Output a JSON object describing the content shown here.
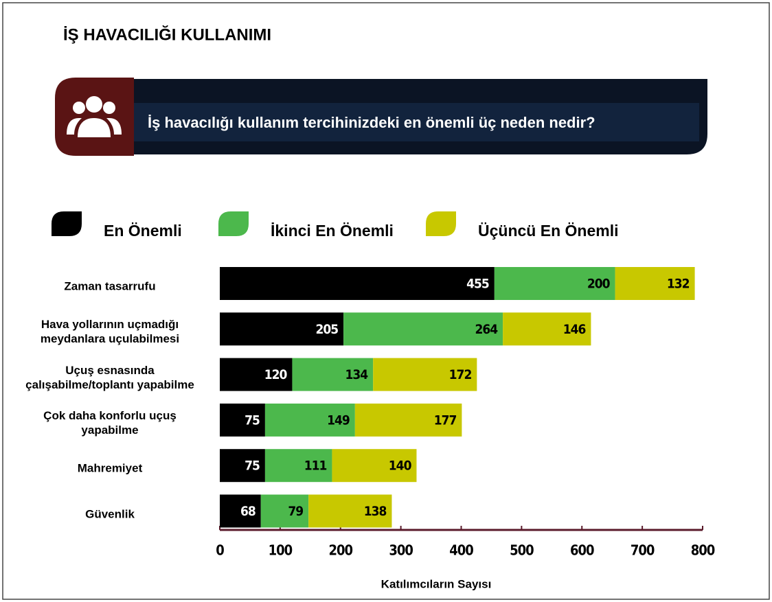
{
  "chart_data": {
    "type": "stacked_barh",
    "title": "İŞ HAVACILIĞI KULLANIMI",
    "subtitle": "İş havacılığı kullanım tercihinizdeki en önemli üç neden nedir?",
    "xlabel": "Katılımcıların Sayısı",
    "categories": [
      "Zaman tasarrufu",
      "Hava yollarının uçmadığı\nmeydanlara uçulabilmesi",
      "Uçuş esnasında\nçalışabilme/toplantı yapabilme",
      "Çok daha konforlu uçuş\nyapabilme",
      "Mahremiyet",
      "Güvenlik"
    ],
    "series": [
      {
        "name": "En Önemli",
        "color": "#000000",
        "values": [
          455,
          205,
          120,
          75,
          75,
          68
        ]
      },
      {
        "name": "İkinci En Önemli",
        "color": "#4cb84c",
        "values": [
          200,
          264,
          134,
          149,
          111,
          79
        ]
      },
      {
        "name": "Üçüncü En Önemli",
        "color": "#c8c800",
        "values": [
          132,
          146,
          172,
          177,
          140,
          138
        ]
      }
    ],
    "xlim": [
      0,
      800
    ],
    "xticks": [
      0,
      100,
      200,
      300,
      400,
      500,
      600,
      700,
      800
    ]
  }
}
